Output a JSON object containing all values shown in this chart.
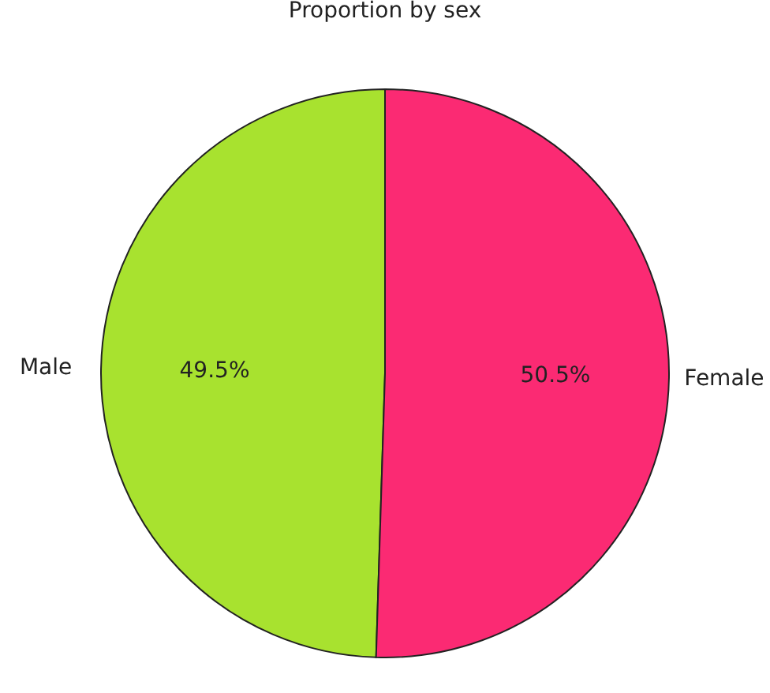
{
  "chart_data": {
    "type": "pie",
    "title": "Proportion by sex",
    "categories": [
      "Male",
      "Female"
    ],
    "values": [
      49.5,
      50.5
    ],
    "value_labels": [
      "49.5%",
      "50.5%"
    ],
    "colors": [
      "#a8e22f",
      "#fb2a73"
    ],
    "legend": false
  }
}
